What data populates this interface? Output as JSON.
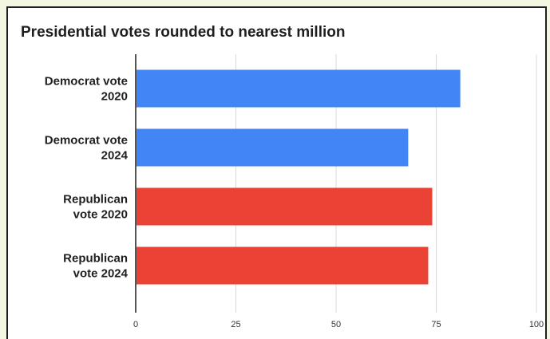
{
  "chart_data": {
    "type": "bar",
    "orientation": "horizontal",
    "title": "Presidential votes rounded to nearest million",
    "categories": [
      [
        "Democrat vote",
        "2020"
      ],
      [
        "Democrat vote",
        "2024"
      ],
      [
        "Republican",
        "vote 2020"
      ],
      [
        "Republican",
        "vote 2024"
      ]
    ],
    "values": [
      81,
      68,
      74,
      73
    ],
    "colors": [
      "#4285f4",
      "#4285f4",
      "#ea4335",
      "#ea4335"
    ],
    "xlim": [
      0,
      100
    ],
    "xticks": [
      0,
      25,
      50,
      75,
      100
    ],
    "grid": true,
    "legend": "none"
  }
}
